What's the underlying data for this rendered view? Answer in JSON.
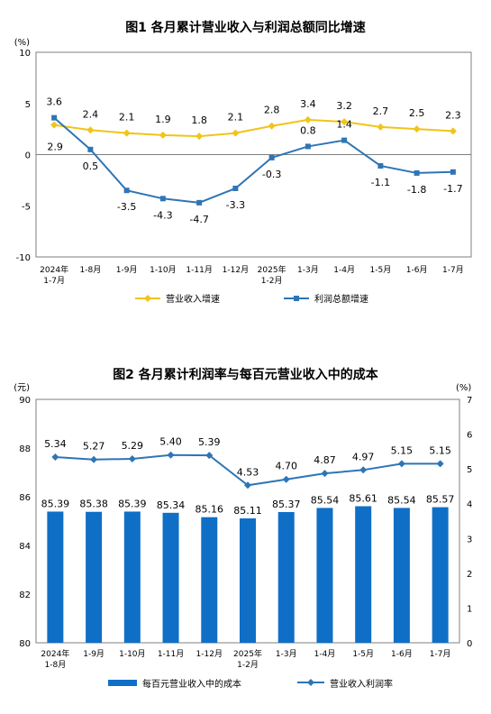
{
  "colors": {
    "yellow": "#F0C419",
    "blue": "#2E75B6",
    "bar": "#0F6FC6",
    "axis": "#7f7f7f"
  },
  "chart_data": [
    {
      "type": "line",
      "title": "图1  各月累计营业收入与利润总额同比增速",
      "y_unit": "(%)",
      "ylim": [
        -10,
        10
      ],
      "yticks": [
        -10,
        -5,
        0,
        5,
        10
      ],
      "categories": [
        [
          "2024年",
          "1-7月"
        ],
        [
          "1-8月"
        ],
        [
          "1-9月"
        ],
        [
          "1-10月"
        ],
        [
          "1-11月"
        ],
        [
          "1-12月"
        ],
        [
          "2025年",
          "1-2月"
        ],
        [
          "1-3月"
        ],
        [
          "1-4月"
        ],
        [
          "1-5月"
        ],
        [
          "1-6月"
        ],
        [
          "1-7月"
        ]
      ],
      "series": [
        {
          "name": "营业收入增速",
          "color": "#F0C419",
          "marker": "diamond",
          "values": [
            2.9,
            2.4,
            2.1,
            1.9,
            1.8,
            2.1,
            2.8,
            3.4,
            3.2,
            2.7,
            2.5,
            2.3
          ],
          "labels": [
            "2.9",
            "2.4",
            "2.1",
            "1.9",
            "1.8",
            "2.1",
            "2.8",
            "3.4",
            "3.2",
            "2.7",
            "2.5",
            "2.3"
          ]
        },
        {
          "name": "利润总额增速",
          "color": "#2E75B6",
          "marker": "square",
          "values": [
            3.6,
            0.5,
            -3.5,
            -4.3,
            -4.7,
            -3.3,
            -0.3,
            0.8,
            1.4,
            -1.1,
            -1.8,
            -1.7
          ],
          "labels": [
            "3.6",
            "0.5",
            "-3.5",
            "-4.3",
            "-4.7",
            "-3.3",
            "-0.3",
            "0.8",
            "1.4",
            "-1.1",
            "-1.8",
            "-1.7"
          ]
        }
      ],
      "grid": false,
      "legend": "bottom"
    },
    {
      "type": "bar",
      "title": "图2  各月累计利润率与每百元营业收入中的成本",
      "y_unit_left": "(元)",
      "y_unit_right": "(%)",
      "ylim_left": [
        80,
        90
      ],
      "yticks_left": [
        80,
        82,
        84,
        86,
        88,
        90
      ],
      "ylim_right": [
        0,
        7
      ],
      "yticks_right": [
        0,
        1,
        2,
        3,
        4,
        5,
        6,
        7
      ],
      "categories": [
        [
          "2024年",
          "1-8月"
        ],
        [
          "1-9月"
        ],
        [
          "1-10月"
        ],
        [
          "1-11月"
        ],
        [
          "1-12月"
        ],
        [
          "2025年",
          "1-2月"
        ],
        [
          "1-3月"
        ],
        [
          "1-4月"
        ],
        [
          "1-5月"
        ],
        [
          "1-6月"
        ],
        [
          "1-7月"
        ]
      ],
      "series": [
        {
          "name": "每百元营业收入中的成本",
          "type": "bar",
          "axis": "left",
          "color": "#0F6FC6",
          "values": [
            85.39,
            85.38,
            85.39,
            85.34,
            85.16,
            85.11,
            85.37,
            85.54,
            85.61,
            85.54,
            85.57
          ],
          "labels": [
            "85.39",
            "85.38",
            "85.39",
            "85.34",
            "85.16",
            "85.11",
            "85.37",
            "85.54",
            "85.61",
            "85.54",
            "85.57"
          ]
        },
        {
          "name": "营业收入利润率",
          "type": "line",
          "axis": "right",
          "color": "#2E75B6",
          "marker": "diamond",
          "values": [
            5.34,
            5.27,
            5.29,
            5.4,
            5.39,
            4.53,
            4.7,
            4.87,
            4.97,
            5.15,
            5.15
          ],
          "labels": [
            "5.34",
            "5.27",
            "5.29",
            "5.40",
            "5.39",
            "4.53",
            "4.70",
            "4.87",
            "4.97",
            "5.15",
            "5.15"
          ]
        }
      ],
      "grid": false,
      "legend": "bottom"
    }
  ]
}
